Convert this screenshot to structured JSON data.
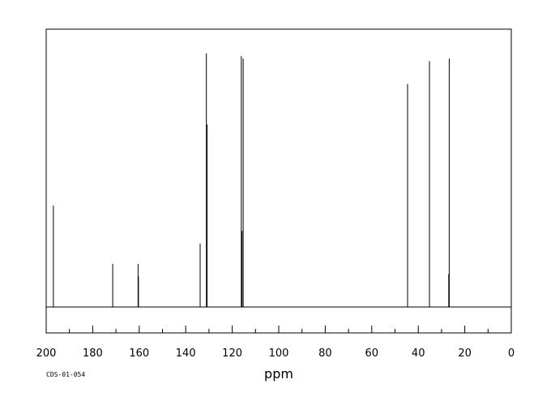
{
  "chart_data": {
    "type": "line",
    "title": "",
    "xlabel": "ppm",
    "ylabel": "",
    "xlim": [
      200,
      0
    ],
    "x_reversed": true,
    "ylim": [
      0,
      1.0
    ],
    "grid": false,
    "x_ticks": [
      200,
      180,
      160,
      140,
      120,
      100,
      80,
      60,
      40,
      20,
      0
    ],
    "x_minor_step": 10,
    "peaks": [
      {
        "ppm": 196.9,
        "intensity": 0.4
      },
      {
        "ppm": 171.4,
        "intensity": 0.17
      },
      {
        "ppm": 160.5,
        "intensity": 0.17
      },
      {
        "ppm": 160.3,
        "intensity": 0.12
      },
      {
        "ppm": 133.8,
        "intensity": 0.25
      },
      {
        "ppm": 131.1,
        "intensity": 1.0
      },
      {
        "ppm": 130.8,
        "intensity": 0.72
      },
      {
        "ppm": 116.1,
        "intensity": 0.99
      },
      {
        "ppm": 115.8,
        "intensity": 0.3
      },
      {
        "ppm": 115.3,
        "intensity": 0.98
      },
      {
        "ppm": 44.6,
        "intensity": 0.88
      },
      {
        "ppm": 35.2,
        "intensity": 0.97
      },
      {
        "ppm": 26.7,
        "intensity": 0.98
      },
      {
        "ppm": 26.9,
        "intensity": 0.13
      }
    ]
  },
  "footer": {
    "code": "CDS-01-054"
  }
}
